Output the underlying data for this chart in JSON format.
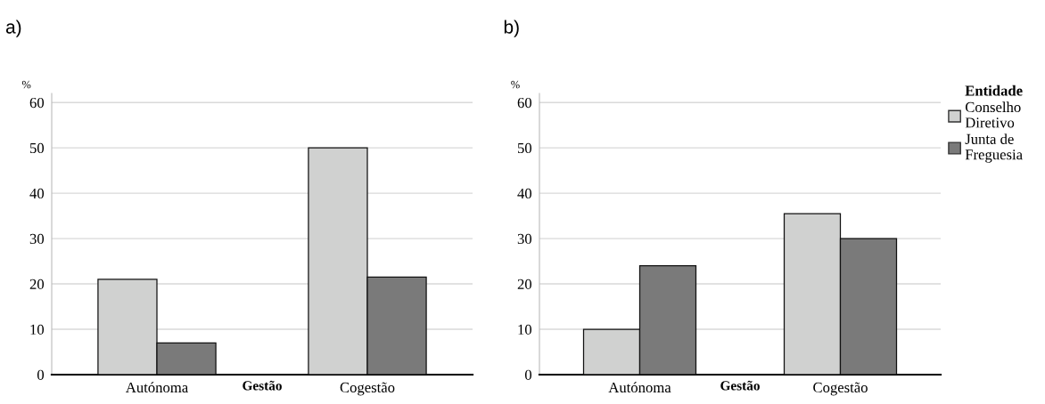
{
  "chart_data": [
    {
      "type": "bar",
      "title": "a)",
      "xlabel": "Gestão",
      "ylabel": "%",
      "categories": [
        "Autónoma",
        "Cogestão"
      ],
      "series": [
        {
          "color": "#d0d1d0",
          "values": [
            21,
            50
          ]
        },
        {
          "color": "#7a7a7a",
          "values": [
            7,
            21.5
          ]
        }
      ],
      "ylim": [
        0,
        62
      ],
      "yticks": [
        0,
        10,
        20,
        30,
        40,
        50,
        60
      ],
      "grid": "y",
      "legend": false
    },
    {
      "type": "bar",
      "title": "b)",
      "xlabel": "Gestão",
      "ylabel": "%",
      "legend_title": "Entidade",
      "categories": [
        "Autónoma",
        "Cogestão"
      ],
      "series": [
        {
          "name": "Conselho\nDiretivo",
          "color": "#d0d1d0",
          "values": [
            10,
            35.5
          ]
        },
        {
          "name": "Junta de\nFreguesia",
          "color": "#7a7a7a",
          "values": [
            24,
            30
          ]
        }
      ],
      "ylim": [
        0,
        62
      ],
      "yticks": [
        0,
        10,
        20,
        30,
        40,
        50,
        60
      ],
      "grid": "y",
      "legend": "right"
    }
  ]
}
